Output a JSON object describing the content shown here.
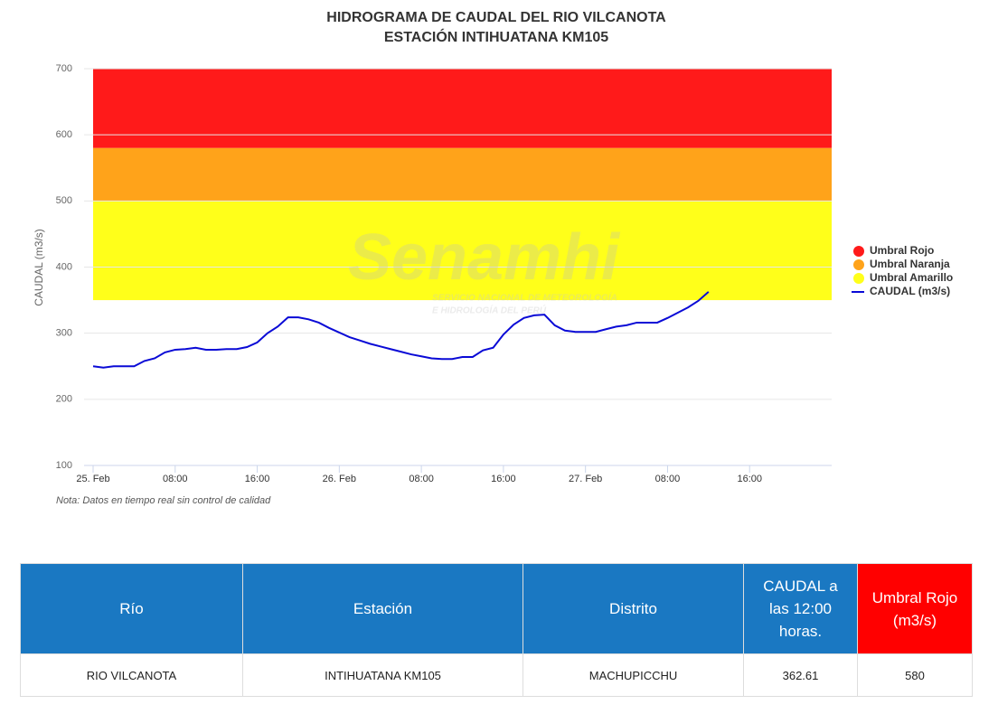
{
  "chart_data": {
    "type": "line",
    "title": "HIDROGRAMA DE CAUDAL DEL RIO VILCANOTA",
    "subtitle": "ESTACIÓN INTIHUATANA KM105",
    "y_label": "CAUDAL (m3/s)",
    "note": "Nota: Datos en tiempo real sin control de calidad",
    "watermark": {
      "logo": "Senamhi",
      "line1": "SERVICIO NACIONAL DE METEOROLOGÍA",
      "line2": "E HIDROLOGÍA DEL PERÚ"
    },
    "ylim": [
      100,
      700
    ],
    "yticks": [
      100,
      200,
      300,
      400,
      500,
      600,
      700
    ],
    "xlim": [
      0,
      72
    ],
    "xticks": [
      {
        "value": 0,
        "label": "25. Feb"
      },
      {
        "value": 8,
        "label": "08:00"
      },
      {
        "value": 16,
        "label": "16:00"
      },
      {
        "value": 24,
        "label": "26. Feb"
      },
      {
        "value": 32,
        "label": "08:00"
      },
      {
        "value": 40,
        "label": "16:00"
      },
      {
        "value": 48,
        "label": "27. Feb"
      },
      {
        "value": 56,
        "label": "08:00"
      },
      {
        "value": 64,
        "label": "16:00"
      }
    ],
    "grid": true,
    "legend": "right",
    "bands": [
      {
        "name": "Umbral Rojo",
        "color": "#ff1a1a",
        "from": 580
      },
      {
        "name": "Umbral Naranja",
        "color": "#ffa31a",
        "from": 500
      },
      {
        "name": "Umbral Amarillo",
        "color": "#ffff1a",
        "from": 350
      }
    ],
    "x": [
      0,
      1,
      2,
      3,
      4,
      5,
      6,
      7,
      8,
      9,
      10,
      11,
      12,
      13,
      14,
      15,
      16,
      17,
      18,
      19,
      20,
      21,
      22,
      23,
      24,
      25,
      26,
      27,
      28,
      29,
      30,
      31,
      32,
      33,
      34,
      35,
      36,
      37,
      38,
      39,
      40,
      41,
      42,
      43,
      44,
      45,
      46,
      47,
      48,
      49,
      50,
      51,
      52,
      53,
      54,
      55,
      56,
      57,
      58,
      59,
      60
    ],
    "series": [
      {
        "name": "CAUDAL (m3/s)",
        "color": "#0a0ad6",
        "values": [
          250,
          248,
          250,
          250,
          250,
          258,
          262,
          271,
          275,
          276,
          278,
          275,
          275,
          276,
          276,
          279,
          286,
          300,
          310,
          324,
          324,
          321,
          316,
          308,
          301,
          294,
          289,
          284,
          280,
          276,
          272,
          268,
          265,
          262,
          261,
          261,
          264,
          264,
          274,
          278,
          298,
          313,
          323,
          327,
          328,
          312,
          304,
          302,
          302,
          302,
          306,
          310,
          312,
          316,
          316,
          316,
          323,
          331,
          339,
          349,
          362.61
        ]
      }
    ]
  },
  "table": {
    "headers": [
      "Río",
      "Estación",
      "Distrito",
      "CAUDAL a las 12:00 horas.",
      "Umbral Rojo (m3/s)"
    ],
    "rows": [
      [
        "RIO VILCANOTA",
        "INTIHUATANA KM105",
        "MACHUPICCHU",
        "362.61",
        "580"
      ]
    ]
  }
}
